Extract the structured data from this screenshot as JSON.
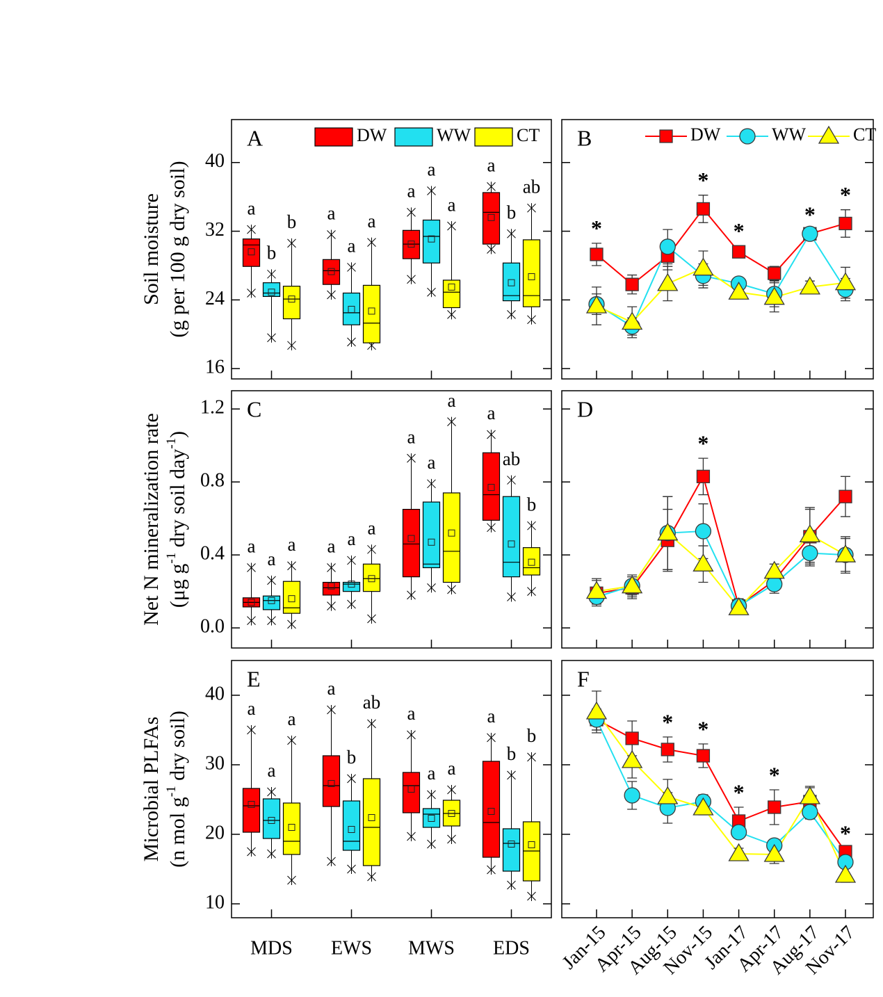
{
  "chart_data": [
    {
      "type": "box",
      "label": "A",
      "ylabel": [
        [
          "Soil moisture"
        ],
        [
          "(g per 100 g dry soil)"
        ]
      ],
      "ylim": [
        14.8,
        45
      ],
      "yticks": [
        16,
        24,
        32,
        40
      ],
      "legend": "top",
      "series": [
        {
          "name": "DW",
          "color": "#ff0000",
          "whisker_low": [
            24.8,
            24.6,
            26.4,
            29.9
          ],
          "q1": [
            27.9,
            25.8,
            28.8,
            30.5
          ],
          "median": [
            30.4,
            27.4,
            30.5,
            34.2
          ],
          "q3": [
            31.1,
            28.7,
            32.1,
            36.5
          ],
          "whisker_high": [
            32.2,
            31.6,
            34.2,
            37.2
          ],
          "mean": [
            29.6,
            27.3,
            30.5,
            33.6
          ],
          "letters": [
            "a",
            "a",
            "a",
            "a"
          ]
        },
        {
          "name": "WW",
          "color": "#22e0f0",
          "whisker_low": [
            19.6,
            19.1,
            24.9,
            22.3
          ],
          "q1": [
            24.4,
            21.1,
            28.3,
            23.9
          ],
          "median": [
            24.8,
            22.5,
            31.4,
            24.5
          ],
          "q3": [
            26.0,
            24.8,
            33.3,
            28.3
          ],
          "whisker_high": [
            27.0,
            27.8,
            36.7,
            31.7
          ],
          "mean": [
            24.9,
            22.9,
            31.1,
            26.0
          ],
          "letters": [
            "b",
            "a",
            "a",
            "b"
          ]
        },
        {
          "name": "CT",
          "color": "#ffff00",
          "whisker_low": [
            18.7,
            18.7,
            22.3,
            21.7
          ],
          "q1": [
            21.8,
            19.0,
            23.1,
            23.2
          ],
          "median": [
            24.1,
            21.3,
            24.9,
            24.5
          ],
          "q3": [
            25.6,
            25.7,
            26.3,
            31.0
          ],
          "whisker_high": [
            30.6,
            30.7,
            32.6,
            34.7
          ],
          "mean": [
            24.1,
            22.7,
            25.5,
            26.7
          ],
          "letters": [
            "b",
            "a",
            "a",
            "ab"
          ]
        }
      ]
    },
    {
      "type": "line",
      "label": "B",
      "ylim": [
        14.8,
        45
      ],
      "yticks": [
        16,
        24,
        32,
        40
      ],
      "ytick_labels": false,
      "legend": "top",
      "annotations": [
        "*",
        null,
        null,
        "*",
        "*",
        null,
        "*",
        "*"
      ],
      "series": [
        {
          "name": "DW",
          "color": "#ff0000",
          "marker": "square",
          "values": [
            29.3,
            25.8,
            29.1,
            34.6,
            29.6,
            27.1,
            31.7,
            32.9
          ],
          "errors": [
            1.3,
            1.1,
            1.6,
            1.6,
            0.7,
            0.8,
            0.4,
            1.6
          ]
        },
        {
          "name": "WW",
          "color": "#22e0f0",
          "marker": "circle",
          "values": [
            23.5,
            20.9,
            30.2,
            26.8,
            25.9,
            24.7,
            31.7,
            25.2
          ],
          "errors": [
            1.2,
            1.0,
            2.0,
            1.4,
            0.5,
            1.5,
            0.5,
            1.3
          ]
        },
        {
          "name": "CT",
          "color": "#ffff00",
          "marker": "triangle",
          "values": [
            23.3,
            21.4,
            25.9,
            27.7,
            24.9,
            24.3,
            25.5,
            26.0
          ],
          "errors": [
            2.2,
            1.8,
            2.0,
            2.0,
            0.6,
            1.7,
            0.7,
            1.8
          ]
        }
      ]
    },
    {
      "type": "box",
      "label": "C",
      "ylabel": [
        [
          "Net N mineralization rate"
        ],
        [
          "(μg g",
          "-1",
          " dry soil day",
          "-1",
          ")"
        ]
      ],
      "ylim": [
        -0.11,
        1.3
      ],
      "yticks": [
        {
          "value": 0,
          "label": "0.0"
        },
        0.4,
        0.8,
        1.2
      ],
      "series": [
        {
          "color": "#ff0000",
          "whisker_low": [
            0.04,
            0.12,
            0.18,
            0.55
          ],
          "q1": [
            0.115,
            0.18,
            0.28,
            0.59
          ],
          "median": [
            0.14,
            0.22,
            0.46,
            0.73
          ],
          "q3": [
            0.165,
            0.25,
            0.65,
            0.96
          ],
          "whisker_high": [
            0.33,
            0.33,
            0.93,
            1.06
          ],
          "mean": [
            0.14,
            0.23,
            0.49,
            0.77
          ],
          "letters": [
            "a",
            "a",
            "a",
            "a"
          ]
        },
        {
          "color": "#22e0f0",
          "whisker_low": [
            0.04,
            0.13,
            0.22,
            0.17
          ],
          "q1": [
            0.1,
            0.2,
            0.33,
            0.28
          ],
          "median": [
            0.15,
            0.24,
            0.35,
            0.36
          ],
          "q3": [
            0.175,
            0.25,
            0.69,
            0.72
          ],
          "whisker_high": [
            0.26,
            0.37,
            0.79,
            0.81
          ],
          "mean": [
            0.15,
            0.24,
            0.47,
            0.46
          ],
          "letters": [
            "a",
            "a",
            "a",
            "ab"
          ]
        },
        {
          "color": "#ffff00",
          "whisker_low": [
            0.02,
            0.05,
            0.21,
            0.2
          ],
          "q1": [
            0.08,
            0.2,
            0.25,
            0.29
          ],
          "median": [
            0.11,
            0.27,
            0.42,
            0.33
          ],
          "q3": [
            0.255,
            0.35,
            0.74,
            0.44
          ],
          "whisker_high": [
            0.34,
            0.43,
            1.13,
            0.56
          ],
          "mean": [
            0.16,
            0.27,
            0.52,
            0.36
          ],
          "letters": [
            "a",
            "a",
            "a",
            "b"
          ]
        }
      ]
    },
    {
      "type": "line",
      "label": "D",
      "ylim": [
        -0.11,
        1.3
      ],
      "yticks": [
        0,
        0.4,
        0.8,
        1.2
      ],
      "ytick_labels": false,
      "annotations": [
        null,
        null,
        null,
        "*",
        null,
        null,
        null,
        null
      ],
      "series": [
        {
          "color": "#ff0000",
          "marker": "square",
          "values": [
            0.19,
            0.22,
            0.48,
            0.83,
            0.12,
            0.26,
            0.5,
            0.72
          ],
          "errors": [
            0.07,
            0.06,
            0.17,
            0.1,
            0.04,
            0.05,
            0.15,
            0.11
          ]
        },
        {
          "color": "#22e0f0",
          "marker": "circle",
          "values": [
            0.17,
            0.23,
            0.52,
            0.53,
            0.12,
            0.24,
            0.41,
            0.4
          ],
          "errors": [
            0.04,
            0.05,
            0.2,
            0.15,
            0.04,
            0.05,
            0.07,
            0.09
          ]
        },
        {
          "color": "#ffff00",
          "marker": "triangle",
          "values": [
            0.2,
            0.23,
            0.52,
            0.35,
            0.11,
            0.31,
            0.51,
            0.4
          ],
          "errors": [
            0.07,
            0.06,
            0.2,
            0.1,
            0.03,
            0.04,
            0.15,
            0.1
          ]
        }
      ]
    },
    {
      "type": "box",
      "label": "E",
      "ylabel": [
        [
          "Microbial PLFAs"
        ],
        [
          "(n mol g",
          "-1",
          " dry soil)"
        ]
      ],
      "ylim": [
        8,
        45
      ],
      "yticks": [
        10,
        20,
        30,
        40
      ],
      "categories": [
        "MDS",
        "EWS",
        "MWS",
        "EDS"
      ],
      "series": [
        {
          "color": "#ff0000",
          "whisker_low": [
            17.5,
            16.1,
            19.7,
            14.9
          ],
          "q1": [
            20.3,
            24.0,
            23.1,
            16.7
          ],
          "median": [
            24.1,
            27.0,
            27.0,
            21.7
          ],
          "q3": [
            26.6,
            31.3,
            28.9,
            30.5
          ],
          "whisker_high": [
            35.0,
            37.9,
            34.3,
            33.9
          ],
          "mean": [
            24.3,
            27.3,
            26.5,
            23.3
          ],
          "letters": [
            "a",
            "a",
            "a",
            "a"
          ]
        },
        {
          "color": "#22e0f0",
          "whisker_low": [
            17.2,
            15.0,
            18.6,
            12.7
          ],
          "q1": [
            19.4,
            17.7,
            21.0,
            14.7
          ],
          "median": [
            22.0,
            19.0,
            22.9,
            18.7
          ],
          "q3": [
            25.1,
            24.8,
            23.7,
            20.8
          ],
          "whisker_high": [
            26.1,
            28.0,
            25.7,
            28.5
          ],
          "mean": [
            22.0,
            20.7,
            22.3,
            18.6
          ],
          "letters": [
            "a",
            "b",
            "a",
            "b"
          ]
        },
        {
          "color": "#ffff00",
          "whisker_low": [
            13.4,
            13.9,
            19.3,
            11.1
          ],
          "q1": [
            17.1,
            15.5,
            21.2,
            13.3
          ],
          "median": [
            19.0,
            21.0,
            23.0,
            17.6
          ],
          "q3": [
            24.5,
            28.0,
            24.9,
            21.8
          ],
          "whisker_high": [
            33.5,
            35.9,
            26.4,
            31.1
          ],
          "mean": [
            21.0,
            22.4,
            23.0,
            18.5
          ],
          "letters": [
            "a",
            "ab",
            "a",
            "b"
          ]
        }
      ]
    },
    {
      "type": "line",
      "label": "F",
      "ylim": [
        8,
        45
      ],
      "yticks": [
        10,
        20,
        30,
        40
      ],
      "ytick_labels": false,
      "xtick_rotation": 45,
      "categories": [
        "Jan-15",
        "Apr-15",
        "Aug-15",
        "Nov-15",
        "Jan-17",
        "Apr-17",
        "Aug-17",
        "Nov-17"
      ],
      "annotations": [
        null,
        null,
        "*",
        "*",
        "*",
        "*",
        null,
        "*"
      ],
      "series": [
        {
          "color": "#ff0000",
          "marker": "square",
          "values": [
            36.5,
            33.8,
            32.2,
            31.3,
            21.9,
            23.9,
            24.7,
            17.5
          ],
          "errors": [
            1.5,
            2.5,
            1.8,
            1.7,
            2.0,
            2.5,
            2.0,
            0.5
          ]
        },
        {
          "color": "#22e0f0",
          "marker": "circle",
          "values": [
            36.5,
            25.6,
            23.8,
            24.7,
            20.3,
            18.4,
            23.2,
            16.0
          ],
          "errors": [
            1.5,
            2.0,
            2.2,
            1.0,
            0.8,
            0.8,
            1.0,
            0.8
          ]
        },
        {
          "color": "#ffff00",
          "marker": "triangle",
          "values": [
            37.6,
            30.6,
            25.4,
            23.8,
            17.2,
            17.1,
            25.4,
            14.1
          ],
          "errors": [
            3.0,
            2.5,
            2.5,
            1.0,
            0.8,
            1.3,
            1.5,
            1.0
          ]
        }
      ]
    }
  ]
}
